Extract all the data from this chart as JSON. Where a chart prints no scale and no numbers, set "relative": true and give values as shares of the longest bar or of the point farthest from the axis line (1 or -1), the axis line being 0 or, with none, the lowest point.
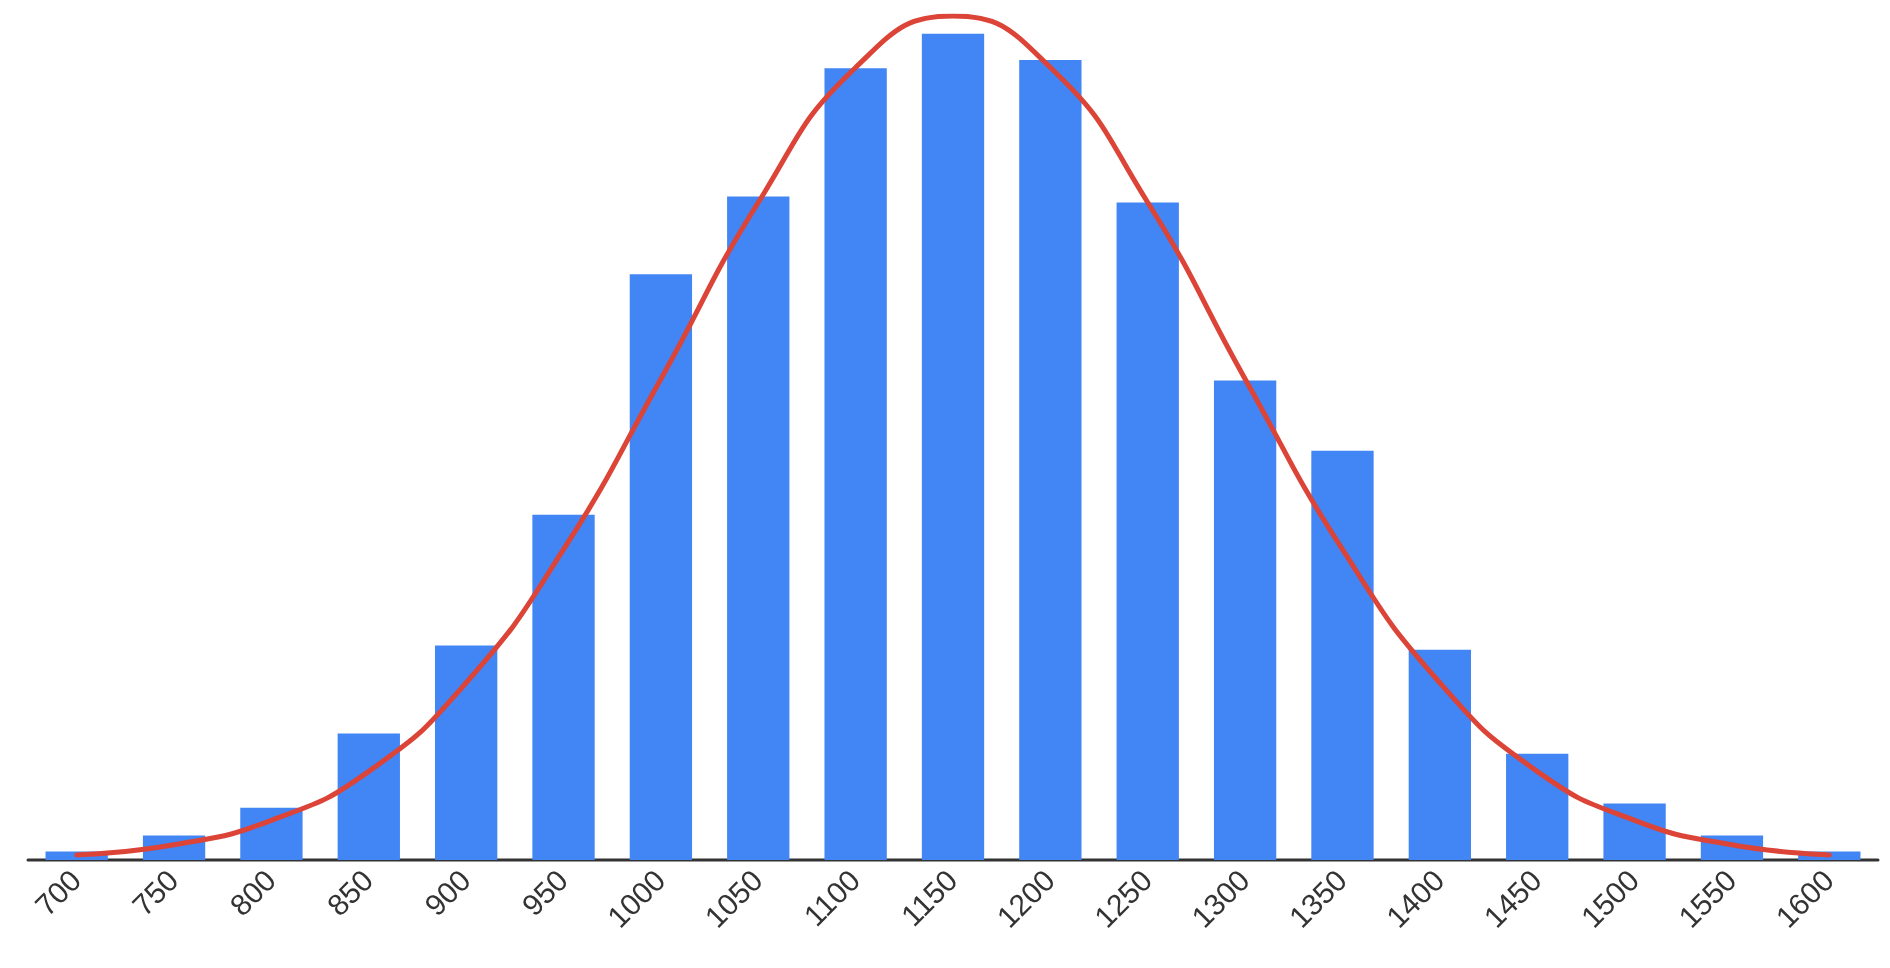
{
  "chart_data": {
    "type": "bar",
    "relative": true,
    "categories": [
      "700",
      "750",
      "800",
      "850",
      "900",
      "950",
      "1000",
      "1050",
      "1100",
      "1150",
      "1200",
      "1250",
      "1300",
      "1350",
      "1400",
      "1450",
      "1500",
      "1550",
      "1600"
    ],
    "series": [
      {
        "color": "#4285f4",
        "values": [
          0.01,
          0.029,
          0.062,
          0.15,
          0.254,
          0.409,
          0.694,
          0.786,
          0.938,
          0.979,
          0.948,
          0.779,
          0.568,
          0.485,
          0.249,
          0.126,
          0.067,
          0.029,
          0.01
        ]
      },
      {
        "type": "line",
        "color": "#db4437",
        "values": [
          0.006,
          0.018,
          0.047,
          0.105,
          0.21,
          0.368,
          0.57,
          0.779,
          0.939,
          1,
          0.939,
          0.779,
          0.57,
          0.368,
          0.21,
          0.105,
          0.047,
          0.018,
          0.006
        ]
      }
    ],
    "grid": false,
    "marker": "none",
    "line_style": "solid"
  }
}
